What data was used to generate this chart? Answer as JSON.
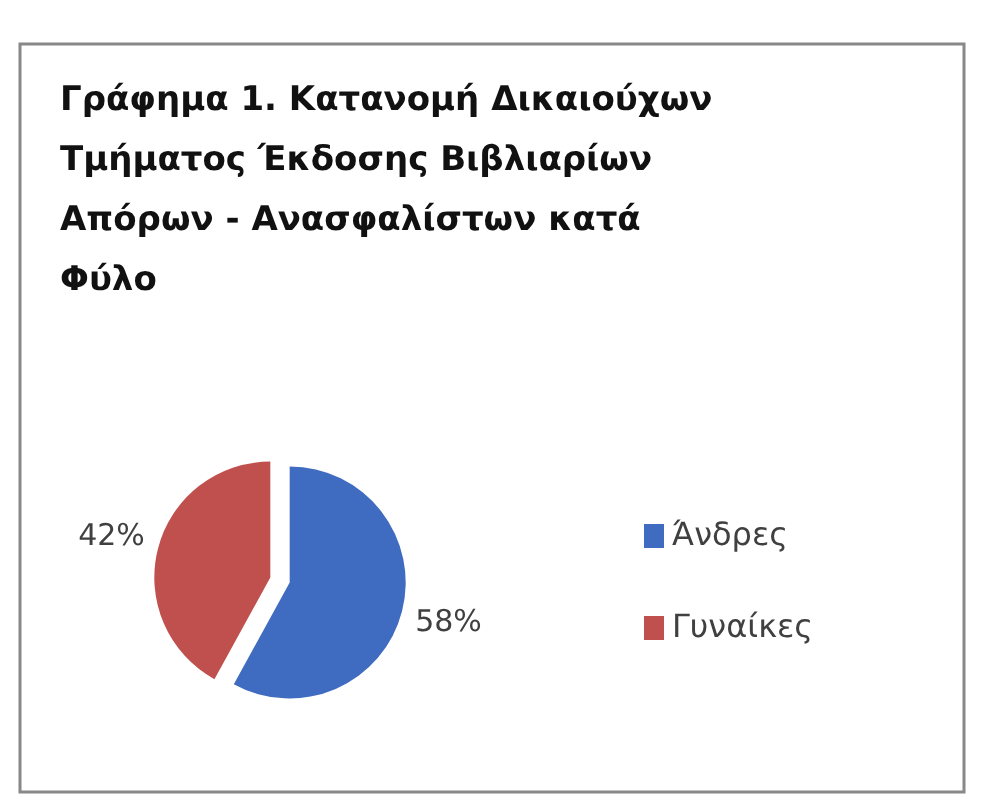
{
  "chart_data": {
    "type": "pie",
    "title": "Γράφημα 1. Κατανομή Δικαιούχων Τμήματος Έκδοσης Βιβλιαρίων Απόρων - Ανασφαλίστων κατά Φύλο",
    "categories": [
      "Άνδρες",
      "Γυναίκες"
    ],
    "values": [
      58,
      42
    ],
    "value_labels": [
      "58%",
      "42%"
    ],
    "colors": [
      "#3f6cc0",
      "#c0504d"
    ],
    "legend": "right"
  }
}
